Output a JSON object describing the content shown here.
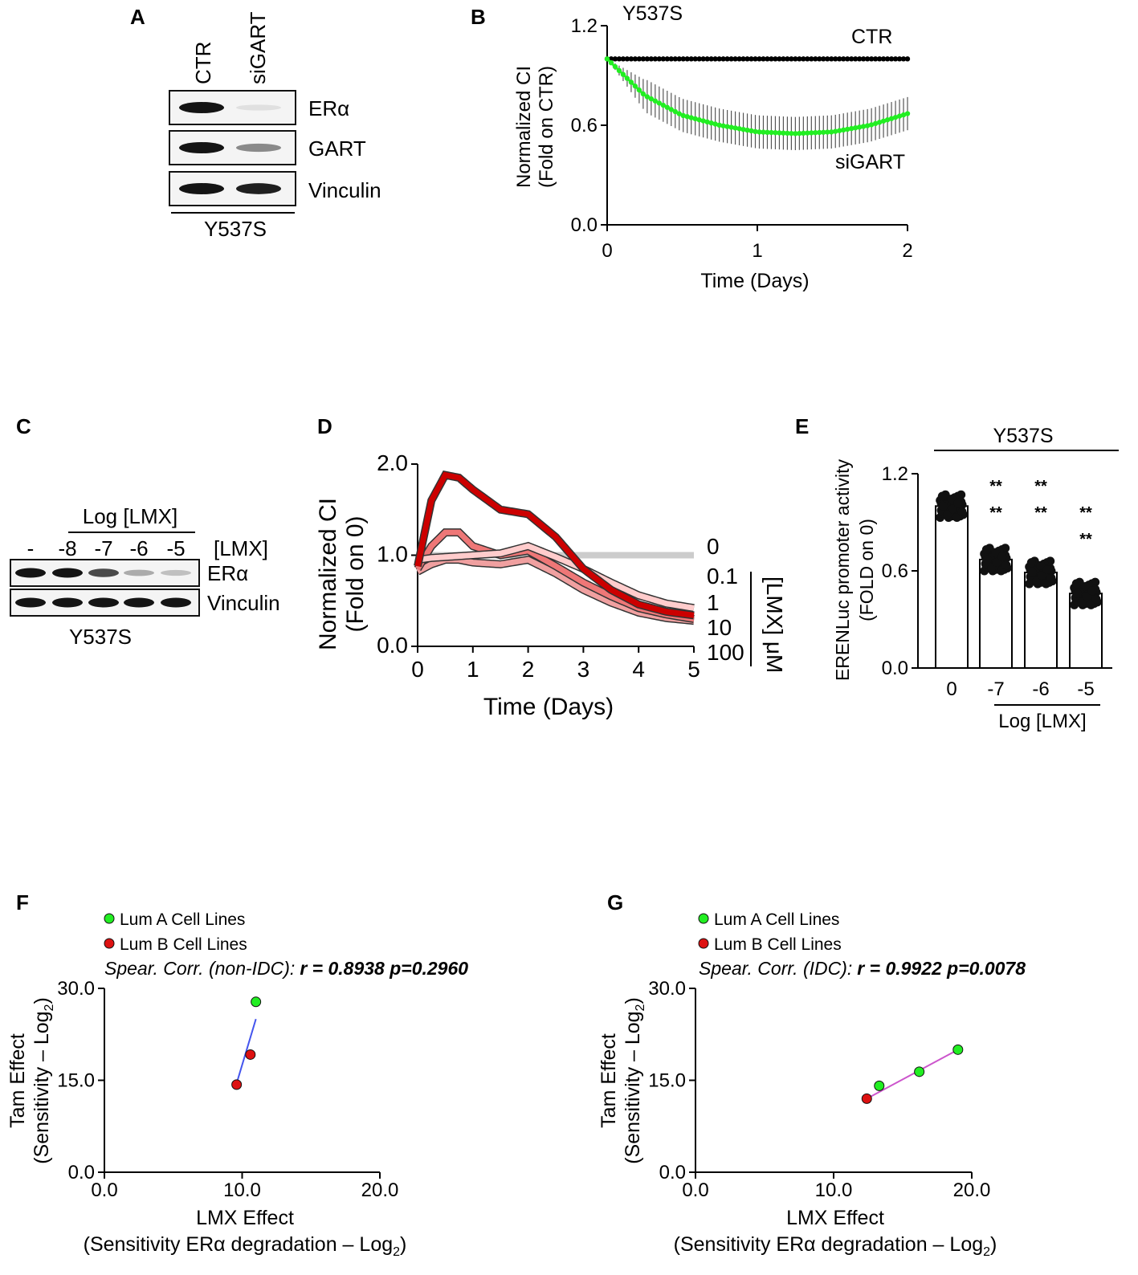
{
  "panels": {
    "A": {
      "letter": "A",
      "lanes": [
        "CTR",
        "siGART"
      ],
      "rows": [
        "ERα",
        "GART",
        "Vinculin"
      ],
      "cell_line": "Y537S",
      "band_intensity": [
        [
          1.0,
          0.05
        ],
        [
          1.0,
          0.45
        ],
        [
          1.0,
          0.95
        ]
      ]
    },
    "B": {
      "letter": "B"
    },
    "C": {
      "letter": "C",
      "group_label": "Log [LMX]",
      "lanes": [
        "-",
        "-8",
        "-7",
        "-6",
        "-5"
      ],
      "conc_label": "[LMX]",
      "rows": [
        "ERα",
        "Vinculin"
      ],
      "cell_line": "Y537S",
      "band_intensity": [
        [
          1.0,
          1.0,
          0.75,
          0.3,
          0.2
        ],
        [
          1.0,
          1.0,
          1.0,
          1.0,
          1.0
        ]
      ]
    },
    "D": {
      "letter": "D"
    },
    "E": {
      "letter": "E"
    },
    "F": {
      "letter": "F",
      "legend": [
        "Lum A Cell Lines",
        "Lum B Cell Lines"
      ],
      "corr_prefix": "Spear. Corr. (non-IDC):",
      "corr_value": "r = 0.8938 p=0.2960"
    },
    "G": {
      "letter": "G",
      "legend": [
        "Lum A Cell Lines",
        "Lum B Cell Lines"
      ],
      "corr_prefix": "Spear. Corr. (IDC):",
      "corr_value": "r = 0.9922 p=0.0078"
    }
  },
  "colors": {
    "green": "#22ee22",
    "red": "#dd1111",
    "black": "#000000",
    "grey": "#cccccc",
    "blue": "#4455ee",
    "magenta": "#cc55cc"
  },
  "chart_data": [
    {
      "id": "B",
      "type": "line",
      "title": "Y537S",
      "xlabel": "Time (Days)",
      "ylabel": [
        "Normalized CI",
        "(Fold on CTR)"
      ],
      "xlim": [
        0,
        2
      ],
      "ylim": [
        0,
        1.2
      ],
      "xticks": [
        "0",
        "1",
        "2"
      ],
      "yticks": [
        "0.0",
        "0.6",
        "1.2"
      ],
      "x": [
        0,
        0.25,
        0.5,
        0.75,
        1.0,
        1.25,
        1.5,
        1.75,
        2.0
      ],
      "series": [
        {
          "name": "CTR",
          "color": "black",
          "values": [
            1,
            1,
            1,
            1,
            1,
            1,
            1,
            1,
            1
          ]
        },
        {
          "name": "siGART",
          "color": "green",
          "values": [
            1.0,
            0.78,
            0.66,
            0.6,
            0.56,
            0.55,
            0.56,
            0.6,
            0.67
          ],
          "error": 0.1
        }
      ]
    },
    {
      "id": "D",
      "type": "line",
      "xlabel": "Time (Days)",
      "ylabel": [
        "Normalized CI",
        "(Fold on 0)"
      ],
      "xlim": [
        0,
        5
      ],
      "ylim": [
        0,
        2.0
      ],
      "xticks": [
        "0",
        "1",
        "2",
        "3",
        "4",
        "5"
      ],
      "yticks": [
        "0.0",
        "1.0",
        "2.0"
      ],
      "legend_title": "[LMX] μM",
      "x": [
        0,
        0.25,
        0.5,
        0.75,
        1.0,
        1.5,
        2.0,
        2.5,
        3.0,
        3.5,
        4.0,
        4.5,
        5.0
      ],
      "series": [
        {
          "name": "0",
          "color": "grey",
          "values": [
            1,
            1,
            1,
            1,
            1,
            1,
            1,
            1,
            1,
            1,
            1,
            1,
            1
          ]
        },
        {
          "name": "0.1",
          "color": "#ffcccc",
          "values": [
            0.95,
            0.97,
            0.98,
            0.99,
            1.0,
            1.02,
            1.1,
            0.98,
            0.85,
            0.7,
            0.56,
            0.47,
            0.42
          ]
        },
        {
          "name": "1",
          "color": "#cc0000",
          "values": [
            0.88,
            1.6,
            1.88,
            1.85,
            1.72,
            1.5,
            1.45,
            1.2,
            0.85,
            0.62,
            0.46,
            0.38,
            0.34
          ]
        },
        {
          "name": "10",
          "color": "#ee7777",
          "values": [
            0.85,
            1.1,
            1.25,
            1.25,
            1.1,
            1.0,
            1.05,
            0.88,
            0.7,
            0.55,
            0.42,
            0.35,
            0.3
          ]
        },
        {
          "name": "100",
          "color": "#f0a0a0",
          "values": [
            0.82,
            0.9,
            0.95,
            0.95,
            0.92,
            0.9,
            0.95,
            0.8,
            0.62,
            0.48,
            0.37,
            0.31,
            0.28
          ]
        }
      ]
    },
    {
      "id": "E",
      "type": "bar",
      "title": "Y537S",
      "xlabel": "Log [LMX]",
      "ylabel": [
        "ERENLuc promoter activity",
        "(FOLD on 0)"
      ],
      "ylim": [
        0,
        1.2
      ],
      "yticks": [
        "0.0",
        "0.6",
        "1.2"
      ],
      "categories": [
        "0",
        "-7",
        "-6",
        "-5"
      ],
      "values": [
        1.0,
        0.67,
        0.59,
        0.46
      ],
      "significance": [
        "",
        "**\n**",
        "**\n**",
        "**\n**"
      ]
    },
    {
      "id": "F",
      "type": "scatter",
      "xlabel": "LMX Effect",
      "xlabel2": "(Sensitivity ERα degradation – Log",
      "ylabel": "Tam Effect",
      "ylabel2": "(Sensitivity – Log",
      "log_base": "2",
      "xlim": [
        0,
        20
      ],
      "ylim": [
        0,
        30
      ],
      "xticks": [
        "0.0",
        "10.0",
        "20.0"
      ],
      "yticks": [
        "0.0",
        "15.0",
        "30.0"
      ],
      "points": [
        {
          "group": "Lum A Cell Lines",
          "x": 11.0,
          "y": 27.8
        },
        {
          "group": "Lum B Cell Lines",
          "x": 10.6,
          "y": 19.2
        },
        {
          "group": "Lum B Cell Lines",
          "x": 9.6,
          "y": 14.3
        }
      ],
      "fit": [
        [
          9.6,
          14.5
        ],
        [
          11.0,
          25.0
        ]
      ]
    },
    {
      "id": "G",
      "type": "scatter",
      "xlabel": "LMX Effect",
      "xlabel2": "(Sensitivity ERα degradation – Log",
      "ylabel": "Tam Effect",
      "ylabel2": "(Sensitivity – Log",
      "log_base": "2",
      "xlim": [
        0,
        20
      ],
      "ylim": [
        0,
        30
      ],
      "xticks": [
        "0.0",
        "10.0",
        "20.0"
      ],
      "yticks": [
        "0.0",
        "15.0",
        "30.0"
      ],
      "points": [
        {
          "group": "Lum B Cell Lines",
          "x": 12.4,
          "y": 12.0
        },
        {
          "group": "Lum A Cell Lines",
          "x": 13.3,
          "y": 14.1
        },
        {
          "group": "Lum A Cell Lines",
          "x": 16.2,
          "y": 16.4
        },
        {
          "group": "Lum A Cell Lines",
          "x": 19.0,
          "y": 20.0
        }
      ],
      "fit": [
        [
          12.4,
          12.0
        ],
        [
          19.0,
          20.0
        ]
      ]
    }
  ]
}
